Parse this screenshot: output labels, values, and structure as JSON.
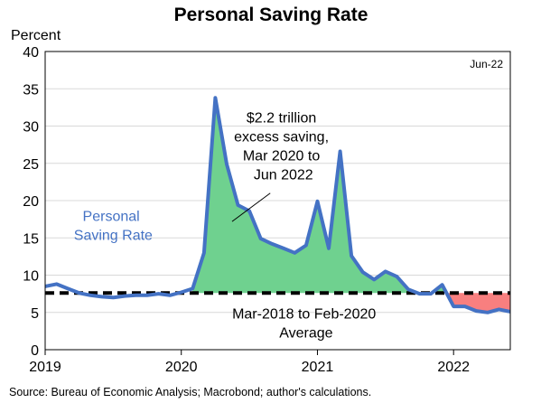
{
  "chart_data": {
    "type": "area",
    "title": "Personal Saving Rate",
    "ylabel": "Percent",
    "ylim": [
      0,
      40
    ],
    "yticks": [
      0,
      5,
      10,
      15,
      20,
      25,
      30,
      35,
      40
    ],
    "xlim": [
      "2019-01",
      "2022-06"
    ],
    "xticks": [
      {
        "x": "2019-01",
        "label": "2019"
      },
      {
        "x": "2020-01",
        "label": "2020"
      },
      {
        "x": "2021-01",
        "label": "2021"
      },
      {
        "x": "2022-01",
        "label": "2022"
      }
    ],
    "grid": true,
    "series": [
      {
        "name": "Personal Saving Rate",
        "color": "#4472c4",
        "x": [
          "2019-01",
          "2019-02",
          "2019-03",
          "2019-04",
          "2019-05",
          "2019-06",
          "2019-07",
          "2019-08",
          "2019-09",
          "2019-10",
          "2019-11",
          "2019-12",
          "2020-01",
          "2020-02",
          "2020-03",
          "2020-04",
          "2020-05",
          "2020-06",
          "2020-07",
          "2020-08",
          "2020-09",
          "2020-10",
          "2020-11",
          "2020-12",
          "2021-01",
          "2021-02",
          "2021-03",
          "2021-04",
          "2021-05",
          "2021-06",
          "2021-07",
          "2021-08",
          "2021-09",
          "2021-10",
          "2021-11",
          "2021-12",
          "2022-01",
          "2022-02",
          "2022-03",
          "2022-04",
          "2022-05",
          "2022-06"
        ],
        "values": [
          8.5,
          8.8,
          8.2,
          7.6,
          7.3,
          7.1,
          7.0,
          7.2,
          7.3,
          7.3,
          7.5,
          7.3,
          7.7,
          8.2,
          13.0,
          33.8,
          24.9,
          19.4,
          18.6,
          14.9,
          14.2,
          13.6,
          13.0,
          14.0,
          19.9,
          13.6,
          26.6,
          12.6,
          10.4,
          9.4,
          10.5,
          9.8,
          8.1,
          7.5,
          7.5,
          8.7,
          5.8,
          5.8,
          5.2,
          5.0,
          5.4,
          5.1
        ]
      }
    ],
    "reference_line": {
      "name": "Mar-2018 to Feb-2020 Average",
      "value": 7.6,
      "style": "dashed",
      "color": "#000000"
    },
    "fills": {
      "above_color": "#6fd18f",
      "below_color": "#f87f7f"
    },
    "annotations": [
      {
        "id": "excess",
        "lines": [
          "$2.2 trillion",
          "excess saving,",
          "Mar 2020 to",
          "Jun 2022"
        ]
      },
      {
        "id": "series",
        "lines": [
          "Personal",
          "Saving Rate"
        ],
        "color": "#4472c4"
      },
      {
        "id": "average",
        "lines": [
          "Mar-2018 to Feb-2020",
          "Average"
        ]
      },
      {
        "id": "date",
        "lines": [
          "Jun-22"
        ]
      }
    ],
    "source": "Source: Bureau of Economic Analysis; Macrobond; author's calculations."
  }
}
